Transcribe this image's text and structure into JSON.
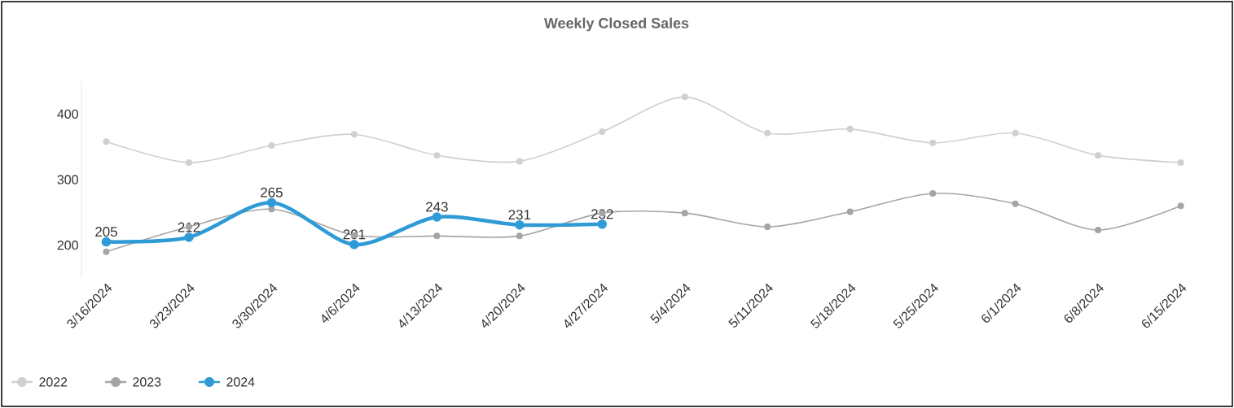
{
  "chart_data": {
    "type": "line",
    "title": "Weekly Closed Sales",
    "categories": [
      "3/16/2024",
      "3/23/2024",
      "3/30/2024",
      "4/6/2024",
      "4/13/2024",
      "4/20/2024",
      "4/27/2024",
      "5/4/2024",
      "5/11/2024",
      "5/18/2024",
      "5/25/2024",
      "6/1/2024",
      "6/8/2024",
      "6/15/2024"
    ],
    "series": [
      {
        "name": "2022",
        "color": "#d0d0d0",
        "values": [
          358,
          326,
          352,
          369,
          337,
          328,
          373,
          426,
          371,
          377,
          356,
          371,
          337,
          326
        ]
      },
      {
        "name": "2023",
        "color": "#a5a5a5",
        "values": [
          190,
          228,
          255,
          215,
          214,
          214,
          249,
          249,
          228,
          251,
          279,
          263,
          223,
          260
        ]
      },
      {
        "name": "2024",
        "color": "#2e9bd6",
        "values": [
          205,
          212,
          265,
          201,
          243,
          231,
          232,
          null,
          null,
          null,
          null,
          null,
          null,
          null
        ],
        "value_labels": [
          "205",
          "212",
          "265",
          "201",
          "243",
          "231",
          "232",
          null,
          null,
          null,
          null,
          null,
          null,
          null
        ]
      }
    ],
    "ylim": [
      150,
      450
    ],
    "yticks": [
      200,
      300,
      400
    ],
    "grid": false,
    "legend": "bottom left",
    "marker": "circle",
    "line_style": "solid"
  }
}
